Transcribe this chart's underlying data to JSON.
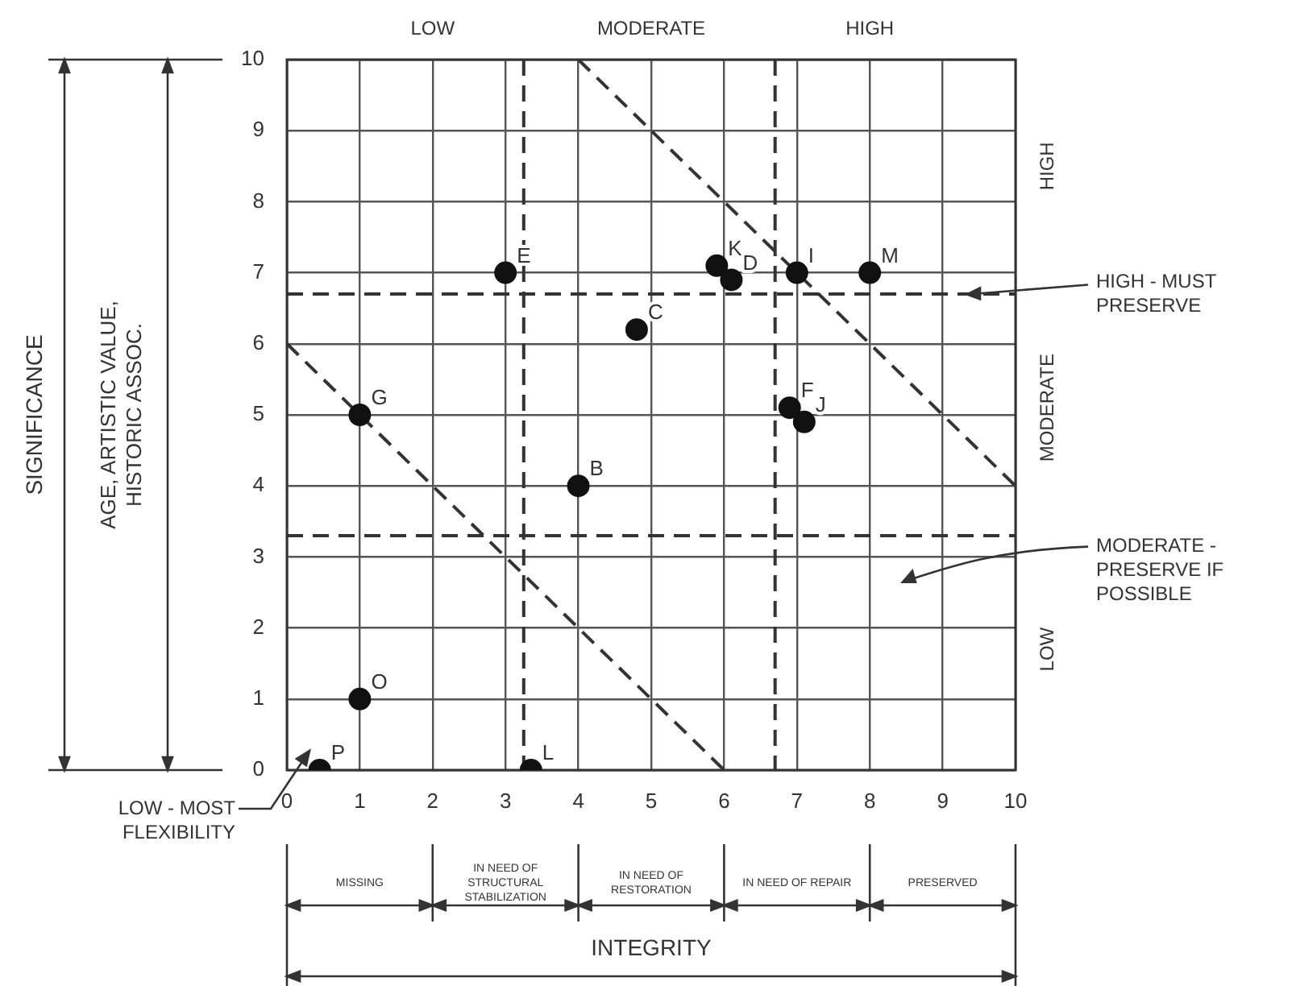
{
  "chart_data": {
    "type": "scatter",
    "xlim": [
      0,
      10
    ],
    "ylim": [
      0,
      10
    ],
    "xticks": [
      0,
      1,
      2,
      3,
      4,
      5,
      6,
      7,
      8,
      9,
      10
    ],
    "yticks": [
      0,
      1,
      2,
      3,
      4,
      5,
      6,
      7,
      8,
      9,
      10
    ],
    "grid": true,
    "marker": "circle",
    "series": [
      {
        "color": "#111111",
        "x": [
          0.45,
          1,
          1,
          3,
          3.35,
          4,
          4.8,
          5.9,
          6.1,
          7,
          8,
          6.9,
          7.1
        ],
        "values": [
          0,
          1,
          5,
          7,
          0,
          4,
          6.2,
          7.1,
          6.9,
          7,
          7,
          5.1,
          4.9
        ]
      },
      {
        "type": "line",
        "color": "#333333",
        "line_style": "dashed",
        "marker": "none",
        "x": [
          0,
          6
        ],
        "values": [
          6,
          0
        ]
      },
      {
        "type": "line",
        "color": "#333333",
        "line_style": "dashed",
        "marker": "none",
        "x": [
          4,
          10
        ],
        "values": [
          10,
          4
        ]
      }
    ],
    "ref_lines": [
      {
        "axis": "x",
        "value": 3.25,
        "line_style": "dashed",
        "color": "#333333"
      },
      {
        "axis": "x",
        "value": 6.7,
        "line_style": "dashed",
        "color": "#333333"
      },
      {
        "axis": "y",
        "value": 6.7,
        "line_style": "dashed",
        "color": "#333333",
        "label": "HIGH - MUST PRESERVE"
      },
      {
        "axis": "y",
        "value": 3.3,
        "line_style": "dashed",
        "color": "#333333"
      }
    ],
    "annotations": [
      "LOW",
      "MODERATE",
      "HIGH",
      "HIGH",
      "MODERATE",
      "LOW",
      "MISSING",
      "IN NEED OF STRUCTURAL STABILIZATION",
      "IN NEED OF RESTORATION",
      "IN NEED OF REPAIR",
      "PRESERVED",
      "AGE, ARTISTIC VALUE, HISTORIC ASSOC.",
      "LOW - MOST FLEXIBILITY",
      "SIGNIFICANCE",
      "INTEGRITY",
      "MODERATE - PRESERVE IF POSSIBLE",
      {
        "text": "P",
        "x": 0.45,
        "y": 0
      },
      {
        "text": "O",
        "x": 1,
        "y": 1
      },
      {
        "text": "G",
        "x": 1,
        "y": 5
      },
      {
        "text": "E",
        "x": 3,
        "y": 7
      },
      {
        "text": "L",
        "x": 3.35,
        "y": 0
      },
      {
        "text": "B",
        "x": 4,
        "y": 4
      },
      {
        "text": "C",
        "x": 4.8,
        "y": 6.2
      },
      {
        "text": "K",
        "x": 5.9,
        "y": 7.1
      },
      {
        "text": "D",
        "x": 6.1,
        "y": 6.9
      },
      {
        "text": "I",
        "x": 7,
        "y": 7
      },
      {
        "text": "M",
        "x": 8,
        "y": 7
      },
      {
        "text": "F",
        "x": 6.9,
        "y": 5.1
      },
      {
        "text": "J",
        "x": 7.1,
        "y": 4.9
      }
    ]
  }
}
